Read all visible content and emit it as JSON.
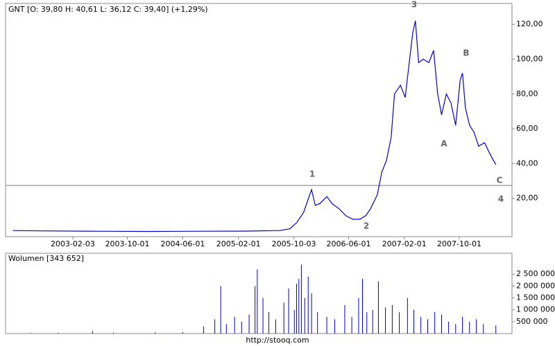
{
  "chart_data": [
    {
      "type": "line",
      "title": "GNT [O: 39,80  H: 40,61  L: 36,12  C: 39,40] (+1,29%)",
      "series": [
        {
          "name": "GNT",
          "color": "#0000cc",
          "x": [
            "2002-05-15",
            "2002-10-01",
            "2003-06-01",
            "2004-01-01",
            "2004-08-01",
            "2005-03-01",
            "2005-08-01",
            "2005-09-15",
            "2005-10-15",
            "2005-11-15",
            "2005-12-01",
            "2005-12-20",
            "2006-01-05",
            "2006-01-25",
            "2006-02-25",
            "2006-03-20",
            "2006-04-20",
            "2006-05-20",
            "2006-06-20",
            "2006-07-20",
            "2006-08-15",
            "2006-09-05",
            "2006-10-05",
            "2006-10-25",
            "2006-11-15",
            "2006-12-05",
            "2006-12-20",
            "2007-01-15",
            "2007-02-05",
            "2007-02-20",
            "2007-03-10",
            "2007-03-22",
            "2007-04-05",
            "2007-04-25",
            "2007-05-20",
            "2007-06-10",
            "2007-06-28",
            "2007-07-15",
            "2007-08-05",
            "2007-08-25",
            "2007-09-15",
            "2007-10-05",
            "2007-10-15",
            "2007-10-28",
            "2007-11-15",
            "2007-12-05",
            "2007-12-25",
            "2008-01-20",
            "2008-02-15",
            "2008-03-10"
          ],
          "values": [
            1.5,
            1.3,
            1.1,
            1.0,
            1.1,
            1.2,
            1.5,
            2.5,
            6,
            12,
            18,
            25,
            16,
            17,
            21,
            17,
            14,
            10,
            8,
            8,
            10,
            14,
            22,
            35,
            42,
            55,
            80,
            85,
            78,
            95,
            115,
            122,
            98,
            100,
            98,
            105,
            80,
            68,
            80,
            75,
            62,
            88,
            92,
            72,
            62,
            58,
            50,
            52,
            45,
            39.4
          ]
        }
      ],
      "annotations": [
        "1",
        "2",
        "3",
        "A",
        "B",
        "C",
        "4"
      ],
      "xlim": [
        "2002-04-13",
        "2008-05-20"
      ],
      "xticks": [
        "2003-02-03",
        "2003-10-01",
        "2004-06-01",
        "2005-02-01",
        "2005-10-03",
        "2006-06-01",
        "2007-02-01",
        "2007-10-01"
      ],
      "ylim": [
        -2,
        132
      ],
      "yticks": [
        {
          "value": 20,
          "label": "20,00"
        },
        {
          "value": 40,
          "label": "40,00"
        },
        {
          "value": 60,
          "label": "60,00"
        },
        {
          "value": 80,
          "label": "80,00"
        },
        {
          "value": 100,
          "label": "100,00"
        },
        {
          "value": 120,
          "label": "120,00"
        }
      ]
    },
    {
      "type": "bar",
      "title": "Wolumen [343 652]",
      "color": "#0000cc",
      "x": [
        "2002-08-01",
        "2002-12-01",
        "2003-05-01",
        "2003-08-01",
        "2004-02-01",
        "2004-06-01",
        "2004-09-01",
        "2004-10-20",
        "2004-11-15",
        "2004-12-10",
        "2005-01-15",
        "2005-02-15",
        "2005-03-20",
        "2005-04-15",
        "2005-04-25",
        "2005-05-20",
        "2005-06-15",
        "2005-07-15",
        "2005-08-20",
        "2005-09-10",
        "2005-10-05",
        "2005-10-15",
        "2005-10-25",
        "2005-11-05",
        "2005-11-20",
        "2005-12-05",
        "2005-12-20",
        "2006-01-15",
        "2006-02-25",
        "2006-04-01",
        "2006-05-15",
        "2006-06-15",
        "2006-07-15",
        "2006-08-01",
        "2006-08-20",
        "2006-09-15",
        "2006-10-10",
        "2006-11-10",
        "2006-12-10",
        "2007-01-10",
        "2007-02-15",
        "2007-03-15",
        "2007-04-15",
        "2007-05-15",
        "2007-06-15",
        "2007-07-15",
        "2007-08-15",
        "2007-09-15",
        "2007-10-15",
        "2007-11-15",
        "2007-12-15",
        "2008-01-15",
        "2008-03-10"
      ],
      "values": [
        20000,
        30000,
        100000,
        40000,
        50000,
        60000,
        300000,
        600000,
        2000000,
        400000,
        700000,
        500000,
        800000,
        2000000,
        2700000,
        1500000,
        900000,
        600000,
        1300000,
        1900000,
        1000000,
        2100000,
        2300000,
        2900000,
        1500000,
        2400000,
        1700000,
        900000,
        700000,
        600000,
        1200000,
        700000,
        1500000,
        2300000,
        900000,
        1000000,
        2200000,
        1100000,
        1200000,
        900000,
        1500000,
        1000000,
        700000,
        600000,
        900000,
        800000,
        500000,
        400000,
        700000,
        500000,
        600000,
        400000,
        343652
      ],
      "xlim": [
        "2002-04-13",
        "2008-05-20"
      ],
      "ylim": [
        0,
        3380000
      ],
      "yticks": [
        {
          "value": 500000,
          "label": "500 000"
        },
        {
          "value": 1000000,
          "label": "1 000 000"
        },
        {
          "value": 1500000,
          "label": "1 500 000"
        },
        {
          "value": 2000000,
          "label": "2 000 000"
        },
        {
          "value": 2500000,
          "label": "2 500 000"
        }
      ]
    }
  ],
  "footer": "http://stooq.com"
}
